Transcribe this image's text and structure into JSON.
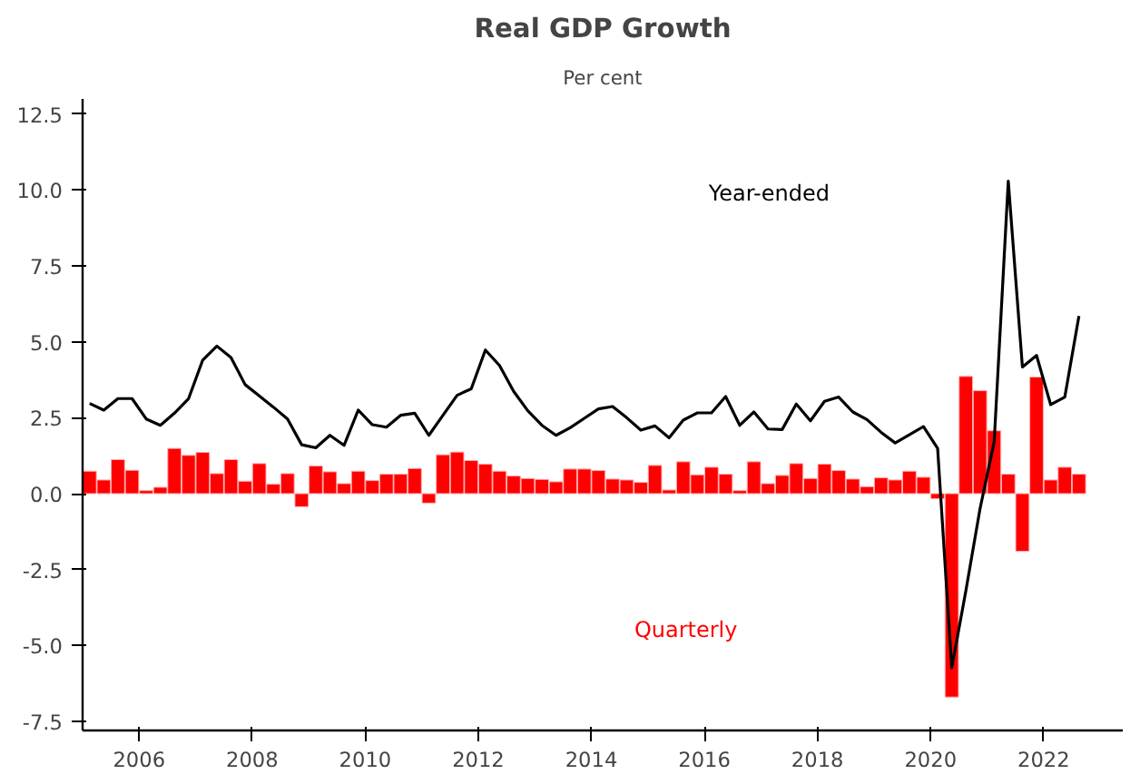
{
  "chart_data": {
    "type": "bar",
    "title": "Real GDP Growth",
    "subtitle": "Per cent",
    "x": [
      2005.125,
      2005.375,
      2005.625,
      2005.875,
      2006.125,
      2006.375,
      2006.625,
      2006.875,
      2007.125,
      2007.375,
      2007.625,
      2007.875,
      2008.125,
      2008.375,
      2008.625,
      2008.875,
      2009.125,
      2009.375,
      2009.625,
      2009.875,
      2010.125,
      2010.375,
      2010.625,
      2010.875,
      2011.125,
      2011.375,
      2011.625,
      2011.875,
      2012.125,
      2012.375,
      2012.625,
      2012.875,
      2013.125,
      2013.375,
      2013.625,
      2013.875,
      2014.125,
      2014.375,
      2014.625,
      2014.875,
      2015.125,
      2015.375,
      2015.625,
      2015.875,
      2016.125,
      2016.375,
      2016.625,
      2016.875,
      2017.125,
      2017.375,
      2017.625,
      2017.875,
      2018.125,
      2018.375,
      2018.625,
      2018.875,
      2019.125,
      2019.375,
      2019.625,
      2019.875,
      2020.125,
      2020.375,
      2020.625,
      2020.875,
      2021.125,
      2021.375,
      2021.625,
      2021.875,
      2022.125,
      2022.375,
      2022.625
    ],
    "series": [
      {
        "name": "Quarterly",
        "color": "#ff0000",
        "values": [
          0.74,
          0.45,
          1.12,
          0.77,
          0.1,
          0.21,
          1.49,
          1.26,
          1.36,
          0.66,
          1.12,
          0.41,
          0.99,
          0.31,
          0.66,
          -0.43,
          0.91,
          0.72,
          0.33,
          0.74,
          0.43,
          0.64,
          0.64,
          0.83,
          -0.31,
          1.28,
          1.37,
          1.09,
          0.97,
          0.74,
          0.58,
          0.5,
          0.47,
          0.39,
          0.81,
          0.81,
          0.76,
          0.48,
          0.45,
          0.37,
          0.93,
          0.12,
          1.05,
          0.62,
          0.87,
          0.64,
          0.1,
          1.05,
          0.33,
          0.6,
          0.99,
          0.5,
          0.97,
          0.76,
          0.48,
          0.23,
          0.52,
          0.45,
          0.74,
          0.54,
          -0.17,
          -6.7,
          3.86,
          3.39,
          2.07,
          0.64,
          -1.9,
          3.84,
          0.45,
          0.87,
          0.64
        ]
      },
      {
        "name": "Year-ended",
        "type": "line",
        "color": "#000000",
        "values": [
          2.97,
          2.75,
          3.13,
          3.13,
          2.46,
          2.25,
          2.65,
          3.13,
          4.4,
          4.86,
          4.48,
          3.59,
          3.22,
          2.85,
          2.46,
          1.61,
          1.51,
          1.92,
          1.59,
          2.75,
          2.27,
          2.19,
          2.58,
          2.65,
          1.92,
          2.58,
          3.24,
          3.45,
          4.73,
          4.22,
          3.37,
          2.73,
          2.25,
          1.92,
          2.17,
          2.48,
          2.79,
          2.87,
          2.5,
          2.09,
          2.23,
          1.84,
          2.42,
          2.66,
          2.66,
          3.2,
          2.25,
          2.69,
          2.13,
          2.11,
          2.95,
          2.4,
          3.04,
          3.18,
          2.69,
          2.44,
          2.02,
          1.67,
          1.94,
          2.21,
          1.49,
          -5.74,
          -3.2,
          -0.5,
          1.7,
          10.29,
          4.17,
          4.55,
          2.93,
          3.18,
          5.85
        ]
      }
    ],
    "xlim": [
      2005.0,
      2023.4
    ],
    "xticks": [
      2006,
      2008,
      2010,
      2012,
      2014,
      2016,
      2018,
      2020,
      2022
    ],
    "ylim": [
      -7.8,
      13.0
    ],
    "yticks": [
      {
        "value": -7.5,
        "label": "-7.5"
      },
      {
        "value": -5,
        "label": "-5.0"
      },
      {
        "value": -2.5,
        "label": "-2.5"
      },
      {
        "value": 0,
        "label": "0.0"
      },
      {
        "value": 2.5,
        "label": "2.5"
      },
      {
        "value": 5,
        "label": "5.0"
      },
      {
        "value": 7.5,
        "label": "7.5"
      },
      {
        "value": 10,
        "label": "10.0"
      },
      {
        "value": 12.5,
        "label": "12.5"
      }
    ],
    "grid": false,
    "legend": false
  }
}
